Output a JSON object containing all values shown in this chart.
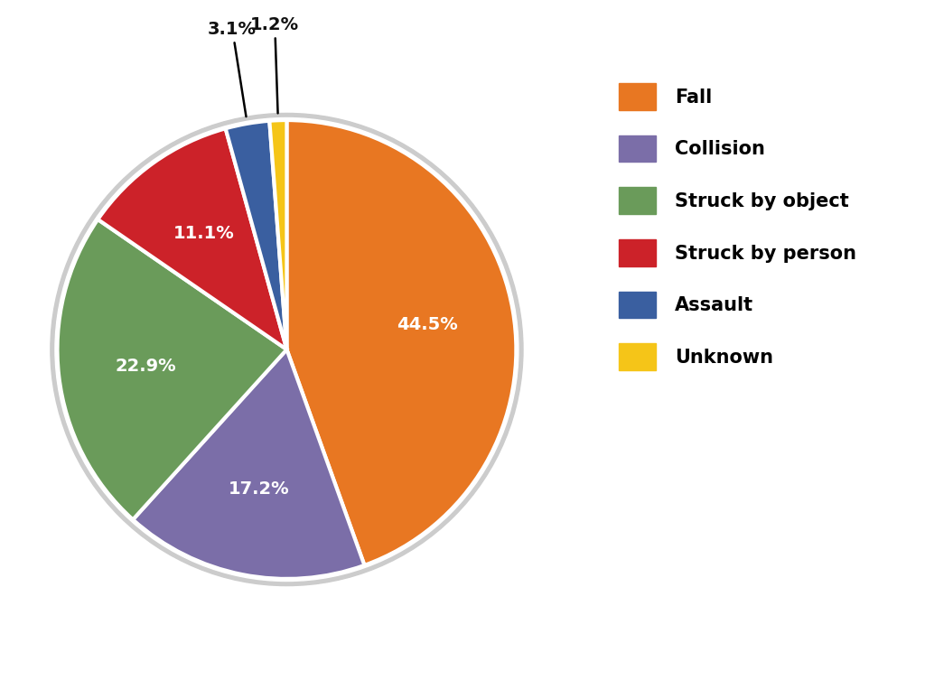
{
  "labels": [
    "Fall",
    "Collision",
    "Struck by object",
    "Struck by person",
    "Assault",
    "Unknown"
  ],
  "values": [
    44.5,
    17.2,
    22.9,
    11.1,
    3.1,
    1.2
  ],
  "colors": [
    "#E87722",
    "#7B6EA8",
    "#6A9B5A",
    "#CC2229",
    "#3A5FA0",
    "#F5C518"
  ],
  "pct_labels": [
    "44.5%",
    "17.2%",
    "22.9%",
    "11.1%",
    "3.1%",
    "1.2%"
  ],
  "legend_labels": [
    "Fall",
    "Collision",
    "Struck by object",
    "Struck by person",
    "Assault",
    "Unknown"
  ],
  "background_color": "#ffffff",
  "wedge_edge_color": "#ffffff",
  "wedge_linewidth": 3.0,
  "font_size_pct": 14,
  "font_size_legend": 15,
  "startangle": 90
}
